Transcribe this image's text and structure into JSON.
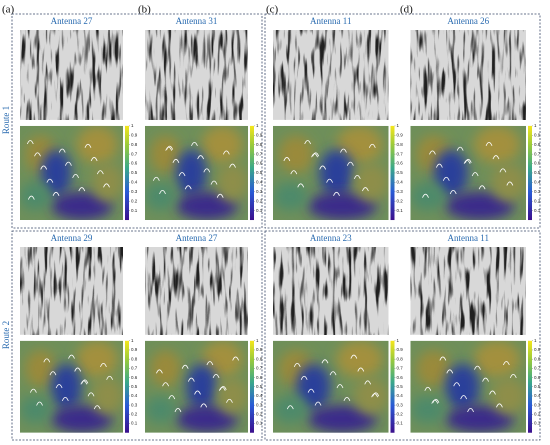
{
  "panel_labels": [
    "(a)",
    "(b)",
    "(c)",
    "(d)"
  ],
  "rows": [
    {
      "label": "Route 1",
      "groups": [
        {
          "antennas": [
            "Antenna 27",
            "Antenna 31"
          ]
        },
        {
          "antennas": [
            "Antenna 11",
            "Antenna 26"
          ]
        }
      ]
    },
    {
      "label": "Route 2",
      "groups": [
        {
          "antennas": [
            "Antenna 29",
            "Antenna 27"
          ]
        },
        {
          "antennas": [
            "Antenna 23",
            "Antenna 11"
          ]
        }
      ]
    }
  ],
  "colorbar_ticks": [
    1,
    0.9,
    0.8,
    0.7,
    0.6,
    0.5,
    0.4,
    0.3,
    0.2,
    0.1
  ]
}
